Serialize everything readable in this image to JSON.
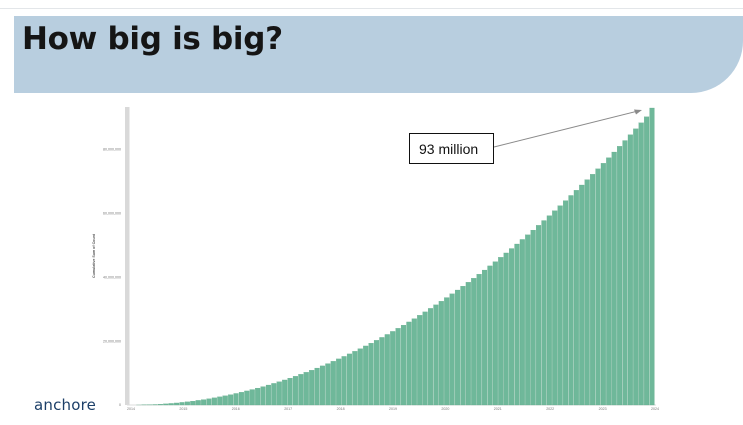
{
  "slide": {
    "title": "How big is big?",
    "logo_text": "anchore"
  },
  "colors": {
    "banner": "#b8cedf",
    "bar_fill": "#6fb89a",
    "bar_stroke": "#5aa684",
    "axis_line": "#d9d9d9",
    "brand_text": "#1c3f68"
  },
  "chart_data": {
    "type": "bar",
    "title": "",
    "xlabel": "",
    "ylabel": "Cumulative Sum of Count",
    "ylim": [
      0,
      93000000
    ],
    "y_ticks": [
      {
        "value": 0,
        "label": "0"
      },
      {
        "value": 20000000,
        "label": "20,000,000"
      },
      {
        "value": 40000000,
        "label": "40,000,000"
      },
      {
        "value": 60000000,
        "label": "60,000,000"
      },
      {
        "value": 80000000,
        "label": "80,000,000"
      }
    ],
    "x_ticks": [
      "2014",
      "2015",
      "2016",
      "2017",
      "2018",
      "2019",
      "2020",
      "2021",
      "2022",
      "2023",
      "2024"
    ],
    "x_range": [
      2014.0,
      2024.0
    ],
    "series": [
      {
        "values": [
          0,
          10000,
          40000,
          90000,
          160000,
          250000,
          360000,
          490000,
          640000,
          810000,
          1000000,
          1210000,
          1440000,
          1690000,
          1960000,
          2250000,
          2560000,
          2890000,
          3240000,
          3610000,
          4000000,
          4410000,
          4840000,
          5290000,
          5760000,
          6250000,
          6760000,
          7290000,
          7840000,
          8410000,
          9000000,
          9610000,
          10240000,
          10890000,
          11560000,
          12250000,
          12960000,
          13690000,
          14440000,
          15210000,
          16000000,
          16810000,
          17640000,
          18490000,
          19360000,
          20250000,
          21160000,
          22090000,
          23040000,
          24010000,
          25000000,
          26010000,
          27040000,
          28090000,
          29160000,
          30250000,
          31360000,
          32490000,
          33640000,
          34810000,
          36000000,
          37210000,
          38440000,
          39690000,
          40960000,
          42250000,
          43560000,
          44890000,
          46240000,
          47610000,
          49000000,
          50410000,
          51840000,
          53290000,
          54760000,
          56250000,
          57760000,
          59290000,
          60840000,
          62410000,
          64000000,
          65610000,
          67240000,
          68890000,
          70560000,
          72250000,
          73960000,
          75690000,
          77440000,
          79210000,
          81000000,
          82810000,
          84640000,
          86490000,
          88360000,
          90250000,
          93000000
        ]
      }
    ],
    "annotations": [
      {
        "text": "93 million",
        "points_to": "last bar"
      }
    ]
  }
}
